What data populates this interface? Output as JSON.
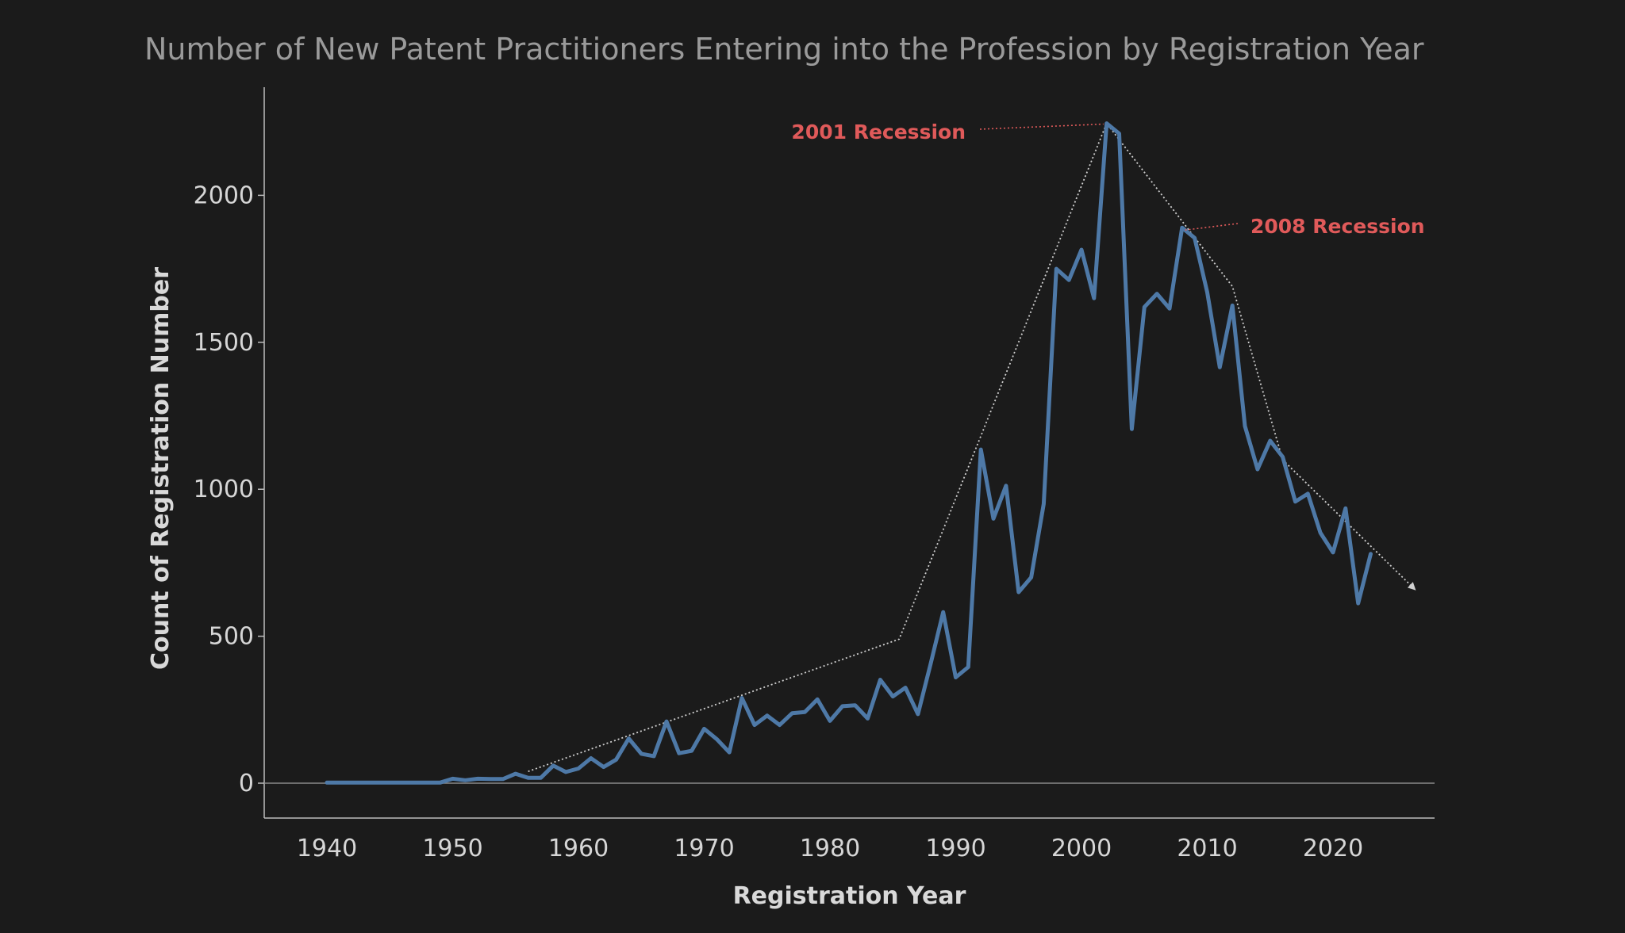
{
  "chart_data": {
    "type": "line",
    "title": "Number of New Patent Practitioners Entering into the Profession by Registration Year",
    "xlabel": "Registration Year",
    "ylabel": "Count of Registration Number",
    "xlim": [
      1935,
      2028
    ],
    "ylim": [
      -120,
      2365
    ],
    "x_ticks": [
      1940,
      1950,
      1960,
      1970,
      1980,
      1990,
      2000,
      2010,
      2020
    ],
    "y_ticks": [
      0,
      500,
      1000,
      1500,
      2000
    ],
    "grid": false,
    "series": [
      {
        "color": "#4e79a7",
        "x": [
          1940,
          1941,
          1942,
          1943,
          1944,
          1945,
          1946,
          1947,
          1948,
          1949,
          1950,
          1951,
          1952,
          1953,
          1954,
          1955,
          1956,
          1957,
          1958,
          1959,
          1960,
          1961,
          1962,
          1963,
          1964,
          1965,
          1966,
          1967,
          1968,
          1969,
          1970,
          1971,
          1972,
          1973,
          1974,
          1975,
          1976,
          1977,
          1978,
          1979,
          1980,
          1981,
          1982,
          1983,
          1984,
          1985,
          1986,
          1987,
          1988,
          1989,
          1990,
          1991,
          1992,
          1993,
          1994,
          1995,
          1996,
          1997,
          1998,
          1999,
          2000,
          2001,
          2002,
          2003,
          2004,
          2005,
          2006,
          2007,
          2008,
          2009,
          2010,
          2011,
          2012,
          2013,
          2014,
          2015,
          2016,
          2017,
          2018,
          2019,
          2020,
          2021,
          2022,
          2023
        ],
        "y": [
          2,
          2,
          2,
          2,
          2,
          2,
          2,
          2,
          2,
          2,
          15,
          10,
          15,
          14,
          14,
          32,
          18,
          18,
          60,
          38,
          50,
          85,
          55,
          80,
          152,
          100,
          92,
          210,
          102,
          110,
          185,
          150,
          105,
          290,
          198,
          230,
          198,
          238,
          242,
          285,
          212,
          262,
          265,
          220,
          352,
          295,
          325,
          235,
          405,
          582,
          360,
          395,
          1135,
          900,
          1012,
          650,
          700,
          950,
          1750,
          1712,
          1815,
          1650,
          2245,
          2210,
          1205,
          1620,
          1665,
          1615,
          1890,
          1855,
          1670,
          1415,
          1625,
          1215,
          1068,
          1165,
          1110,
          958,
          985,
          852,
          785,
          935,
          612,
          780
        ]
      }
    ],
    "annotations": [
      {
        "text": "2001 Recession",
        "color": "#e05a5a",
        "target": {
          "x": 2002,
          "y": 2245
        }
      },
      {
        "text": "2008 Recession",
        "color": "#e05a5a",
        "target": {
          "x": 2008,
          "y": 1890
        }
      }
    ],
    "trend_path": {
      "color": "#d0d0d0",
      "style": "dotted",
      "arrow_end": true,
      "points": [
        [
          1956,
          40
        ],
        [
          1985.5,
          490
        ],
        [
          2002,
          2245
        ],
        [
          2012,
          1690
        ],
        [
          2016,
          1100
        ],
        [
          2026.5,
          660
        ]
      ]
    }
  }
}
